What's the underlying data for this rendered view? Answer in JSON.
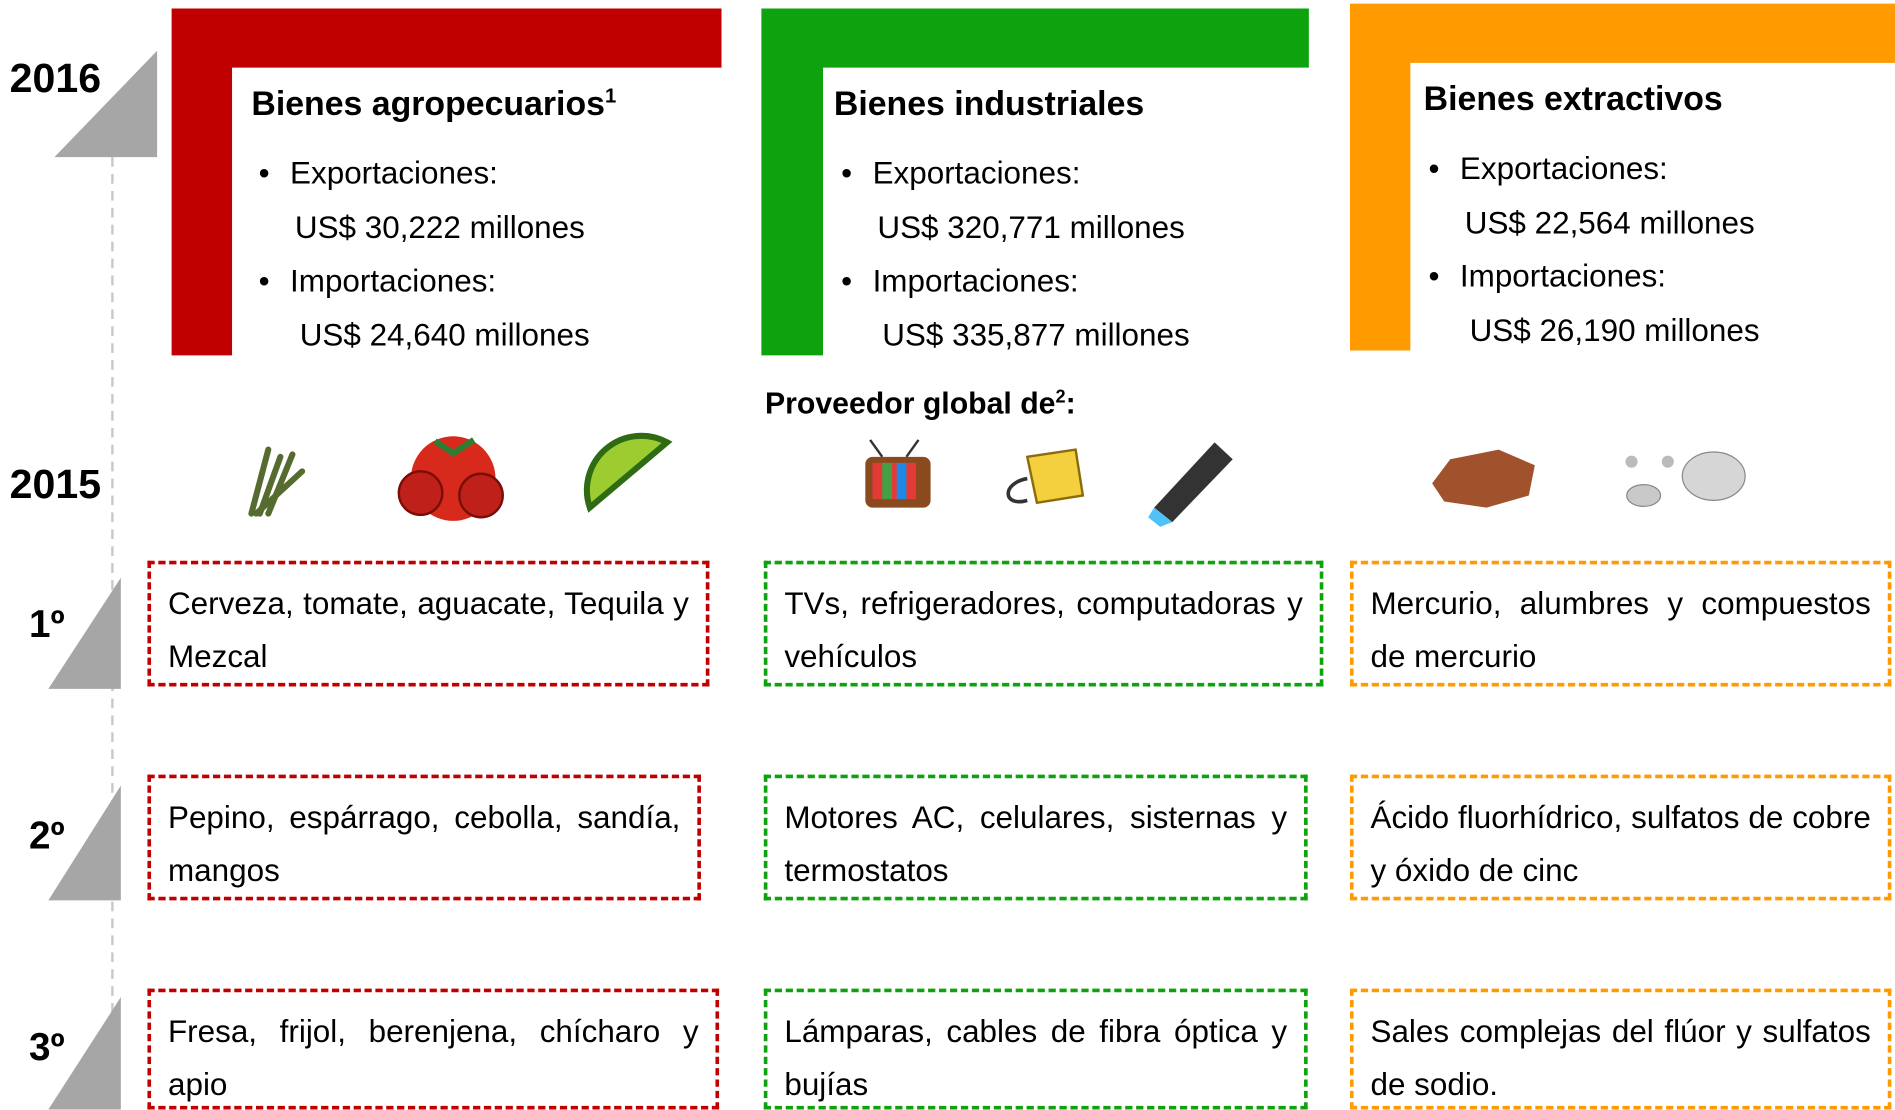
{
  "years": [
    "2016",
    "2015"
  ],
  "supplier_heading": {
    "text": "Proveedor global de",
    "sup": "2",
    "suffix": ":"
  },
  "ranks": [
    "1º",
    "2º",
    "3º"
  ],
  "columns": [
    {
      "title": "Bienes agropecuarios",
      "title_sup": "1",
      "exports_label": "Exportaciones:",
      "exports_value": "US$ 30,222 millones",
      "imports_label": "Importaciones:",
      "imports_value": "US$ 24,640 millones",
      "items": [
        "Cerveza, tomate, aguacate, Tequila y Mezcal",
        "Pepino, espárrago, cebolla, sandía, mangos",
        "Fresa, frijol, berenjena, chícharo y apio"
      ]
    },
    {
      "title": "Bienes industriales",
      "exports_label": "Exportaciones:",
      "exports_value": "US$ 320,771 millones",
      "imports_label": "Importaciones:",
      "imports_value": "US$ 335,877 millones",
      "items": [
        "TVs, refrigeradores, computadoras y  vehículos",
        "Motores AC, celulares, sisternas y termostatos",
        "Lámparas, cables de fibra óptica y bujías"
      ]
    },
    {
      "title": "Bienes extractivos",
      "exports_label": "Exportaciones:",
      "exports_value": "US$ 22,564 millones",
      "imports_label": "Importaciones:",
      "imports_value": "US$ 26,190 millones",
      "items": [
        "Mercurio, alumbres y compuestos de mercurio",
        "Ácido fluorhídrico, sulfatos de cobre y óxido de cinc",
        "Sales complejas del flúor y sulfatos de sodio."
      ]
    }
  ]
}
